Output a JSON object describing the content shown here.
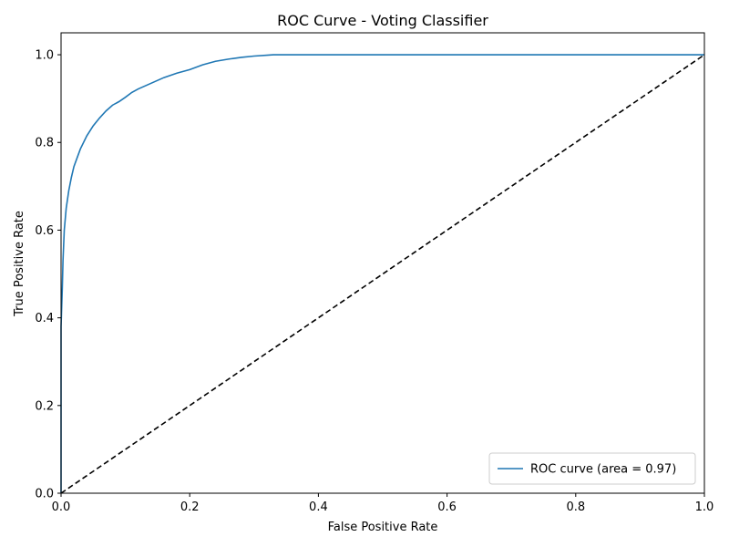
{
  "chart_data": {
    "type": "line",
    "title": "ROC Curve - Voting Classifier",
    "xlabel": "False Positive Rate",
    "ylabel": "True Positive Rate",
    "xlim": [
      0.0,
      1.0
    ],
    "ylim": [
      0.0,
      1.05
    ],
    "xticks": [
      "0.0",
      "0.2",
      "0.4",
      "0.6",
      "0.8",
      "1.0"
    ],
    "yticks": [
      "0.0",
      "0.2",
      "0.4",
      "0.6",
      "0.8",
      "1.0"
    ],
    "grid": false,
    "legend_position": "lower-right",
    "series": [
      {
        "name": "ROC curve (area = 0.97)",
        "color": "#1f77b4",
        "style": "solid",
        "x": [
          0.0,
          0.0,
          0.002,
          0.003,
          0.005,
          0.008,
          0.012,
          0.016,
          0.02,
          0.025,
          0.03,
          0.04,
          0.05,
          0.06,
          0.07,
          0.08,
          0.09,
          0.1,
          0.11,
          0.12,
          0.14,
          0.16,
          0.18,
          0.2,
          0.22,
          0.24,
          0.26,
          0.28,
          0.3,
          0.32,
          0.33,
          0.5,
          0.7,
          0.9,
          1.0
        ],
        "y": [
          0.0,
          0.38,
          0.47,
          0.53,
          0.6,
          0.65,
          0.69,
          0.72,
          0.745,
          0.765,
          0.785,
          0.815,
          0.838,
          0.856,
          0.872,
          0.885,
          0.893,
          0.903,
          0.914,
          0.922,
          0.935,
          0.948,
          0.958,
          0.966,
          0.977,
          0.985,
          0.99,
          0.994,
          0.997,
          0.999,
          1.0,
          1.0,
          1.0,
          1.0,
          1.0
        ]
      },
      {
        "name": "",
        "color": "#000000",
        "style": "dashed",
        "x": [
          0.0,
          1.0
        ],
        "y": [
          0.0,
          1.0
        ]
      }
    ]
  }
}
